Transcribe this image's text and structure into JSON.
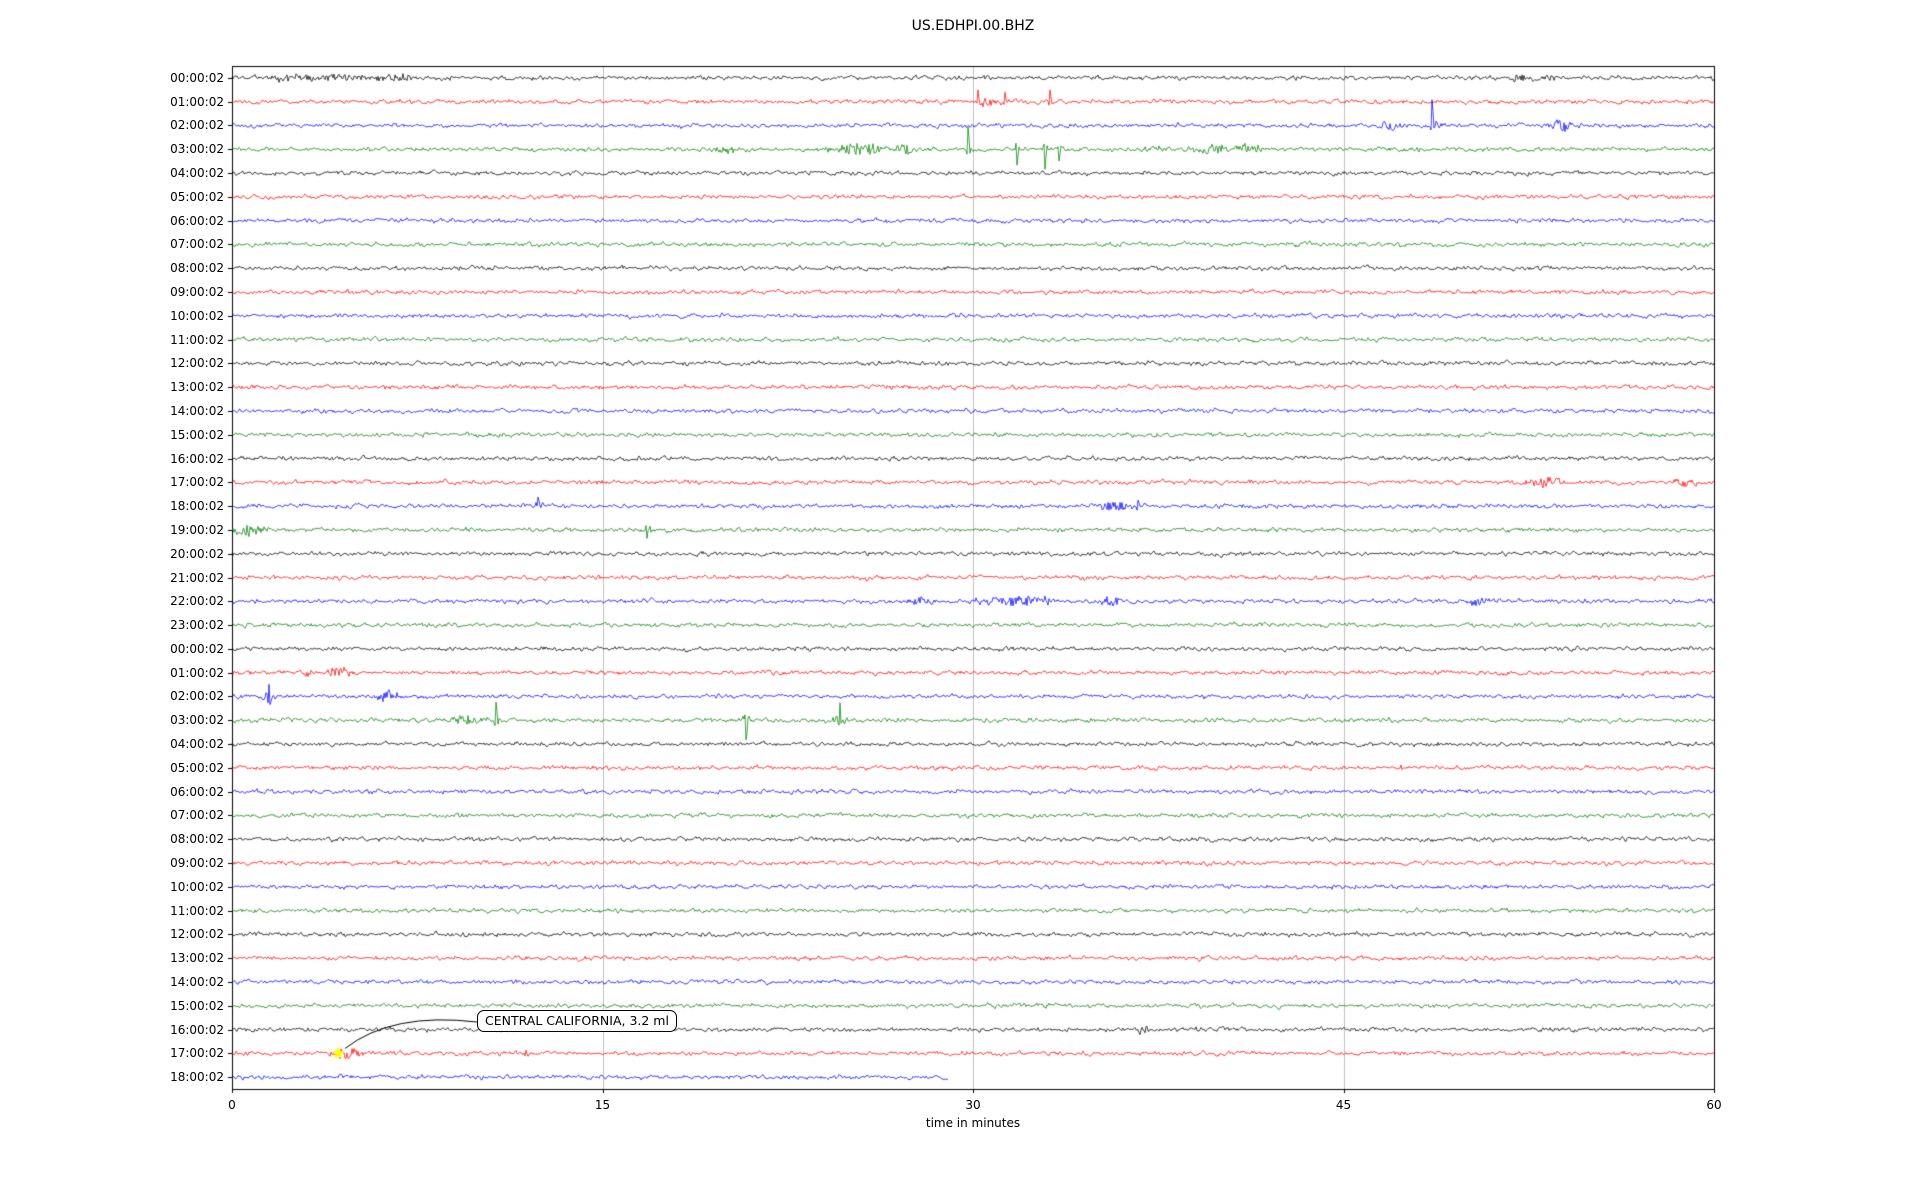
{
  "chart_data": {
    "type": "line",
    "subtype": "seismogram-dayplot",
    "title": "US.EDHPI.00.BHZ",
    "xlabel": "time in minutes",
    "xlim": [
      0,
      60
    ],
    "grid_minutes": [
      15,
      30,
      45
    ],
    "grid_on": true,
    "x_ticks": [
      {
        "min": 0,
        "label": "0"
      },
      {
        "min": 15,
        "label": "15"
      },
      {
        "min": 30,
        "label": "30"
      },
      {
        "min": 45,
        "label": "45"
      },
      {
        "min": 60,
        "label": "60"
      }
    ],
    "trace_color_cycle": [
      "#000000",
      "#ff0000",
      "#0000ff",
      "#008000"
    ],
    "rows": [
      {
        "label": "00:00:02",
        "color": "#000000",
        "events": [
          {
            "t": 2.2,
            "type": "burst",
            "w": 0.5,
            "amp": 3
          },
          {
            "t": 3.6,
            "type": "burst",
            "w": 2.4,
            "amp": 3.5
          },
          {
            "t": 6.5,
            "type": "burst",
            "w": 1.2,
            "amp": 4
          },
          {
            "t": 35.0,
            "type": "burst",
            "w": 0.3,
            "amp": 3
          },
          {
            "t": 52.3,
            "type": "burst",
            "w": 0.8,
            "amp": 4
          },
          {
            "t": 53.3,
            "type": "burst",
            "w": 0.5,
            "amp": 3
          }
        ]
      },
      {
        "label": "01:00:02",
        "color": "#ff0000",
        "events": [
          {
            "t": 30.2,
            "type": "spike",
            "amp": 12,
            "dir": "up"
          },
          {
            "t": 30.5,
            "type": "burst",
            "w": 0.6,
            "amp": 4
          },
          {
            "t": 31.3,
            "type": "spike",
            "amp": 8,
            "dir": "up"
          },
          {
            "t": 33.1,
            "type": "spike",
            "amp": 11,
            "dir": "up"
          }
        ]
      },
      {
        "label": "02:00:02",
        "color": "#0000ff",
        "events": [
          {
            "t": 46.8,
            "type": "burst",
            "w": 0.6,
            "amp": 5
          },
          {
            "t": 48.6,
            "type": "spike",
            "amp": 24,
            "dir": "up"
          },
          {
            "t": 48.8,
            "type": "burst",
            "w": 0.4,
            "amp": 5
          },
          {
            "t": 53.7,
            "type": "burst",
            "w": 0.7,
            "amp": 6
          }
        ]
      },
      {
        "label": "03:00:02",
        "color": "#008000",
        "events": [
          {
            "t": 20.0,
            "type": "burst",
            "w": 0.8,
            "amp": 4
          },
          {
            "t": 25.4,
            "type": "burst",
            "w": 1.4,
            "amp": 7
          },
          {
            "t": 27.2,
            "type": "burst",
            "w": 0.7,
            "amp": 5
          },
          {
            "t": 29.8,
            "type": "spike",
            "amp": 22,
            "dir": "up"
          },
          {
            "t": 31.8,
            "type": "spike",
            "amp": 16,
            "dir": "down"
          },
          {
            "t": 32.9,
            "type": "spike",
            "amp": 20,
            "dir": "down"
          },
          {
            "t": 33.5,
            "type": "spike",
            "amp": 12,
            "dir": "down"
          },
          {
            "t": 37.2,
            "type": "burst",
            "w": 0.5,
            "amp": 4
          },
          {
            "t": 39.6,
            "type": "burst",
            "w": 0.9,
            "amp": 5
          },
          {
            "t": 41.2,
            "type": "burst",
            "w": 0.7,
            "amp": 5
          }
        ]
      },
      {
        "label": "04:00:02",
        "color": "#000000",
        "events": []
      },
      {
        "label": "05:00:02",
        "color": "#ff0000",
        "events": []
      },
      {
        "label": "06:00:02",
        "color": "#0000ff",
        "events": []
      },
      {
        "label": "07:00:02",
        "color": "#008000",
        "events": []
      },
      {
        "label": "08:00:02",
        "color": "#000000",
        "events": []
      },
      {
        "label": "09:00:02",
        "color": "#ff0000",
        "events": []
      },
      {
        "label": "10:00:02",
        "color": "#0000ff",
        "events": []
      },
      {
        "label": "11:00:02",
        "color": "#008000",
        "events": []
      },
      {
        "label": "12:00:02",
        "color": "#000000",
        "events": []
      },
      {
        "label": "13:00:02",
        "color": "#ff0000",
        "events": []
      },
      {
        "label": "14:00:02",
        "color": "#0000ff",
        "events": []
      },
      {
        "label": "15:00:02",
        "color": "#008000",
        "events": []
      },
      {
        "label": "16:00:02",
        "color": "#000000",
        "events": []
      },
      {
        "label": "17:00:02",
        "color": "#ff0000",
        "events": [
          {
            "t": 53.2,
            "type": "burst",
            "w": 1.0,
            "amp": 6
          },
          {
            "t": 58.9,
            "type": "burst",
            "w": 0.8,
            "amp": 5
          }
        ]
      },
      {
        "label": "18:00:02",
        "color": "#0000ff",
        "events": [
          {
            "t": 12.4,
            "type": "spike",
            "amp": 8,
            "dir": "up"
          },
          {
            "t": 12.4,
            "type": "burst",
            "w": 0.3,
            "amp": 3
          },
          {
            "t": 35.8,
            "type": "burst",
            "w": 1.0,
            "amp": 5
          },
          {
            "t": 36.7,
            "type": "spike",
            "amp": 6,
            "dir": "up"
          }
        ]
      },
      {
        "label": "19:00:02",
        "color": "#008000",
        "events": [
          {
            "t": 0.7,
            "type": "burst",
            "w": 1.0,
            "amp": 6
          },
          {
            "t": 16.8,
            "type": "spike",
            "amp": 9,
            "dir": "down"
          },
          {
            "t": 16.8,
            "type": "burst",
            "w": 0.3,
            "amp": 3
          }
        ]
      },
      {
        "label": "20:00:02",
        "color": "#000000",
        "events": []
      },
      {
        "label": "21:00:02",
        "color": "#ff0000",
        "events": [
          {
            "t": 34.5,
            "type": "burst",
            "w": 0.4,
            "amp": 4
          }
        ]
      },
      {
        "label": "22:00:02",
        "color": "#0000ff",
        "events": [
          {
            "t": 27.9,
            "type": "burst",
            "w": 0.8,
            "amp": 4
          },
          {
            "t": 31.8,
            "type": "burst",
            "w": 2.0,
            "amp": 6
          },
          {
            "t": 35.6,
            "type": "burst",
            "w": 0.6,
            "amp": 5
          },
          {
            "t": 50.5,
            "type": "burst",
            "w": 0.9,
            "amp": 4
          }
        ]
      },
      {
        "label": "23:00:02",
        "color": "#008000",
        "events": []
      },
      {
        "label": "00:00:02",
        "color": "#000000",
        "events": []
      },
      {
        "label": "01:00:02",
        "color": "#ff0000",
        "events": [
          {
            "t": 3.0,
            "type": "burst",
            "w": 0.4,
            "amp": 4
          },
          {
            "t": 4.3,
            "type": "burst",
            "w": 0.7,
            "amp": 6
          }
        ]
      },
      {
        "label": "02:00:02",
        "color": "#0000ff",
        "events": [
          {
            "t": 1.5,
            "type": "spike",
            "amp": 15,
            "dir": "both"
          },
          {
            "t": 1.5,
            "type": "burst",
            "w": 0.4,
            "amp": 5
          },
          {
            "t": 6.3,
            "type": "burst",
            "w": 0.7,
            "amp": 5
          }
        ]
      },
      {
        "label": "03:00:02",
        "color": "#008000",
        "events": [
          {
            "t": 9.4,
            "type": "burst",
            "w": 1.2,
            "amp": 5
          },
          {
            "t": 10.7,
            "type": "spike",
            "amp": 19,
            "dir": "up"
          },
          {
            "t": 20.8,
            "type": "spike",
            "amp": 21,
            "dir": "down"
          },
          {
            "t": 20.8,
            "type": "burst",
            "w": 0.4,
            "amp": 5
          },
          {
            "t": 24.6,
            "type": "spike",
            "amp": 13,
            "dir": "both"
          },
          {
            "t": 24.6,
            "type": "burst",
            "w": 0.5,
            "amp": 5
          }
        ]
      },
      {
        "label": "04:00:02",
        "color": "#000000",
        "events": []
      },
      {
        "label": "05:00:02",
        "color": "#ff0000",
        "events": [
          {
            "t": 47.3,
            "type": "burst",
            "w": 0.2,
            "amp": 3
          }
        ]
      },
      {
        "label": "06:00:02",
        "color": "#0000ff",
        "events": []
      },
      {
        "label": "07:00:02",
        "color": "#008000",
        "events": []
      },
      {
        "label": "08:00:02",
        "color": "#000000",
        "events": []
      },
      {
        "label": "09:00:02",
        "color": "#ff0000",
        "events": []
      },
      {
        "label": "10:00:02",
        "color": "#0000ff",
        "events": []
      },
      {
        "label": "11:00:02",
        "color": "#008000",
        "events": []
      },
      {
        "label": "12:00:02",
        "color": "#000000",
        "events": []
      },
      {
        "label": "13:00:02",
        "color": "#ff0000",
        "events": []
      },
      {
        "label": "14:00:02",
        "color": "#0000ff",
        "events": []
      },
      {
        "label": "15:00:02",
        "color": "#008000",
        "events": []
      },
      {
        "label": "16:00:02",
        "color": "#000000",
        "events": [
          {
            "t": 36.9,
            "type": "burst",
            "w": 0.4,
            "amp": 5
          }
        ]
      },
      {
        "label": "17:00:02",
        "color": "#ff0000",
        "events": [
          {
            "t": 4.6,
            "type": "burst",
            "w": 0.8,
            "amp": 6
          },
          {
            "t": 11.9,
            "type": "spike",
            "amp": 4,
            "dir": "up"
          }
        ]
      },
      {
        "label": "18:00:02",
        "color": "#0000ff",
        "end_min": 29,
        "events": []
      }
    ],
    "annotation": {
      "text": "CENTRAL CALIFORNIA, 3.2 ml",
      "target_row": 41,
      "target_min": 4.3,
      "marker_shape": "star",
      "marker_color": "#ffff00"
    }
  }
}
